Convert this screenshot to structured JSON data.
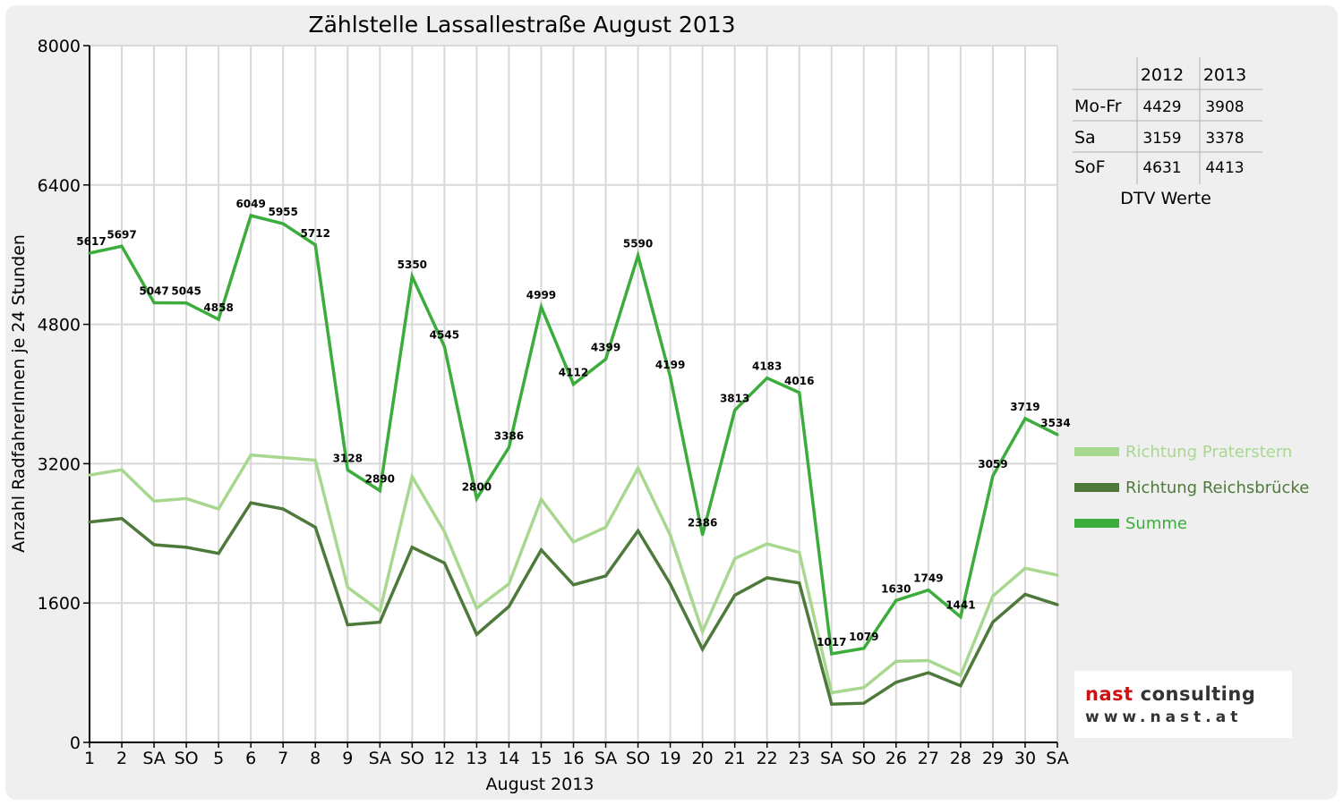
{
  "chart_data": {
    "type": "line",
    "title": "Zählstelle Lassallestraße August 2013",
    "xlabel": "August 2013",
    "ylabel": "Anzahl RadfahrerInnen je 24 Stunden",
    "ylim": [
      0,
      8000
    ],
    "yticks": [
      "0",
      "1600",
      "3200",
      "4800",
      "6400",
      "8000"
    ],
    "grid": true,
    "legend_position": "right",
    "categories": [
      "1",
      "2",
      "SA",
      "SO",
      "5",
      "6",
      "7",
      "8",
      "9",
      "SA",
      "SO",
      "12",
      "13",
      "14",
      "15",
      "16",
      "SA",
      "SO",
      "19",
      "20",
      "21",
      "22",
      "23",
      "SA",
      "SO",
      "26",
      "27",
      "28",
      "29",
      "30",
      "SA"
    ],
    "red_categories": [
      3,
      10,
      14,
      17,
      24
    ],
    "series": [
      {
        "name": "Richtung Praterstern",
        "color": "#a8d890",
        "values": [
          3070,
          3130,
          2770,
          2800,
          2680,
          3300,
          3270,
          3240,
          1780,
          1510,
          3050,
          2420,
          1540,
          1820,
          2790,
          2300,
          2470,
          3150,
          2380,
          1270,
          2110,
          2280,
          2180,
          570,
          630,
          930,
          940,
          770,
          1680,
          2000,
          1920
        ]
      },
      {
        "name": "Richtung Reichsbrücke",
        "color": "#4d7a3a",
        "values": [
          2530,
          2570,
          2270,
          2240,
          2170,
          2750,
          2680,
          2470,
          1350,
          1380,
          2240,
          2060,
          1240,
          1560,
          2210,
          1810,
          1910,
          2430,
          1820,
          1070,
          1690,
          1890,
          1830,
          440,
          450,
          690,
          800,
          650,
          1380,
          1700,
          1580
        ]
      },
      {
        "name": "Summe",
        "color": "#3cac3c",
        "values": [
          5617,
          5697,
          5047,
          5045,
          4858,
          6049,
          5955,
          5712,
          3128,
          2890,
          5350,
          4545,
          2800,
          3386,
          4999,
          4112,
          4399,
          5590,
          4199,
          2386,
          3813,
          4183,
          4016,
          1017,
          1079,
          1630,
          1749,
          1441,
          3059,
          3719,
          3534
        ],
        "labels": [
          "5617",
          "5697",
          "5047",
          "5045",
          "4858",
          "6049",
          "5955",
          "5712",
          "3128",
          "2890",
          "5350",
          "4545",
          "2800",
          "3386",
          "4999",
          "4112",
          "4399",
          "5590",
          "4199",
          "2386",
          "3813",
          "4183",
          "4016",
          "1017",
          "1079",
          "1630",
          "1749",
          "1441",
          "3059",
          "3719",
          "3534"
        ]
      }
    ]
  },
  "dtv_table": {
    "headers": [
      "",
      "2012",
      "2013"
    ],
    "rows": [
      {
        "label": "Mo-Fr",
        "v2012": "4429",
        "v2013": "3908"
      },
      {
        "label": "Sa",
        "v2012": "3159",
        "v2013": "3378"
      },
      {
        "label": "SoF",
        "v2012": "4631",
        "v2013": "4413"
      }
    ],
    "caption": "DTV Werte"
  },
  "logo": {
    "brand_a": "nast",
    "brand_b": "consulting",
    "url": "www.nast.at",
    "color_a": "#cc1111",
    "color_b": "#333333"
  }
}
